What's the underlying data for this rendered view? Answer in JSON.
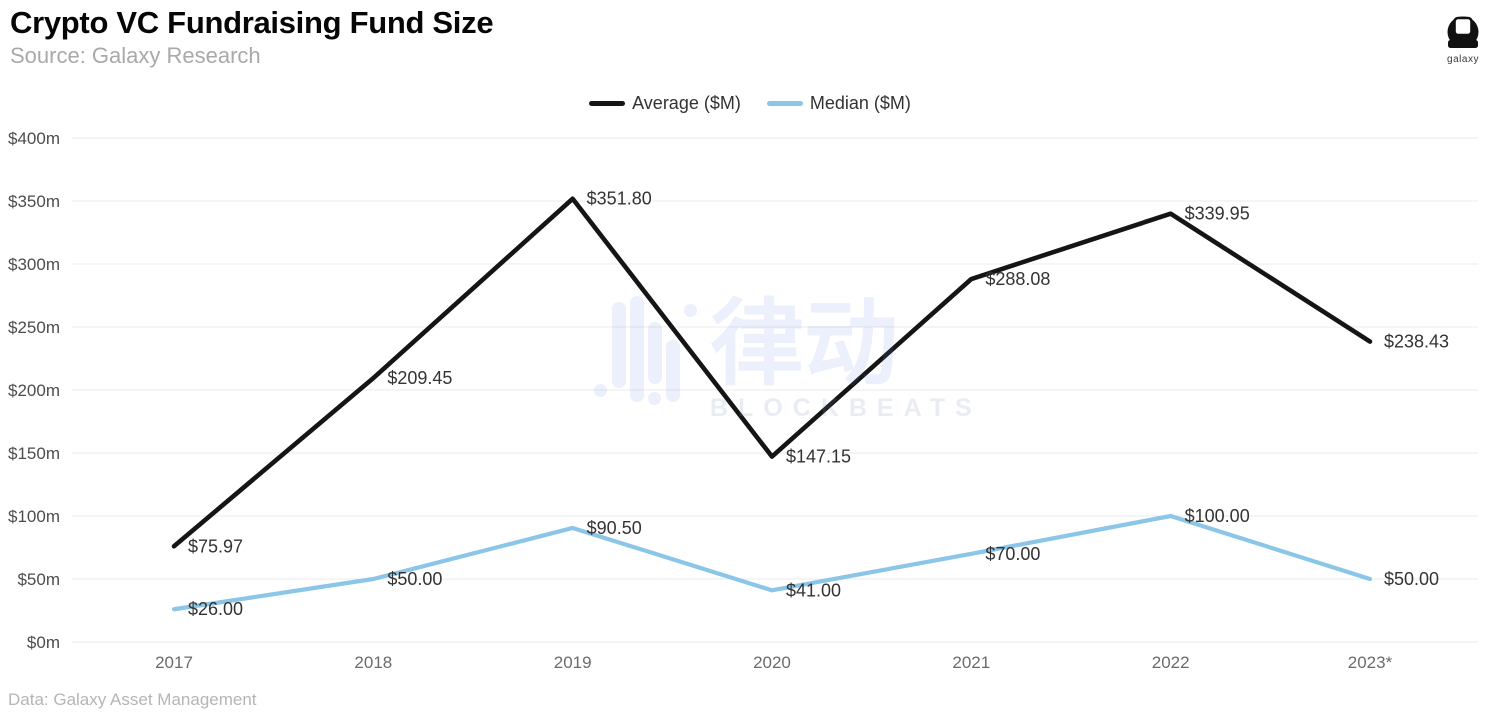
{
  "header": {
    "title": "Crypto VC Fundraising Fund Size",
    "source": "Source: Galaxy Research"
  },
  "brand": {
    "label": "galaxy"
  },
  "legend": [
    {
      "label": "Average ($M)",
      "color": "#151515"
    },
    {
      "label": "Median ($M)",
      "color": "#8bc5e8"
    }
  ],
  "watermark": {
    "cjk": "律动",
    "latin": "BLOCKBEATS"
  },
  "footer": {
    "note": "Data: Galaxy Asset Management"
  },
  "chart_data": {
    "type": "line",
    "title": "Crypto VC Fundraising Fund Size",
    "categories": [
      "2017",
      "2018",
      "2019",
      "2020",
      "2021",
      "2022",
      "2023*"
    ],
    "series": [
      {
        "id": "average",
        "name": "Average ($M)",
        "color": "#151515",
        "values": [
          75.97,
          209.45,
          351.8,
          147.15,
          288.08,
          339.95,
          238.43
        ],
        "labels": [
          "$75.97",
          "$209.45",
          "$351.80",
          "$147.15",
          "$288.08",
          "$339.95",
          "$238.43"
        ]
      },
      {
        "id": "median",
        "name": "Median ($M)",
        "color": "#8bc5e8",
        "values": [
          26.0,
          50.0,
          90.5,
          41.0,
          70.0,
          100.0,
          50.0
        ],
        "labels": [
          "$26.00",
          "$50.00",
          "$90.50",
          "$41.00",
          "$70.00",
          "$100.00",
          "$50.00"
        ]
      }
    ],
    "y_axis": {
      "range": [
        0,
        400
      ],
      "ticks": [
        0,
        50,
        100,
        150,
        200,
        250,
        300,
        350,
        400
      ],
      "tick_labels": [
        "$0m",
        "$50m",
        "$100m",
        "$150m",
        "$200m",
        "$250m",
        "$300m",
        "$350m",
        "$400m"
      ]
    },
    "grid": true,
    "legend_position": "top"
  }
}
